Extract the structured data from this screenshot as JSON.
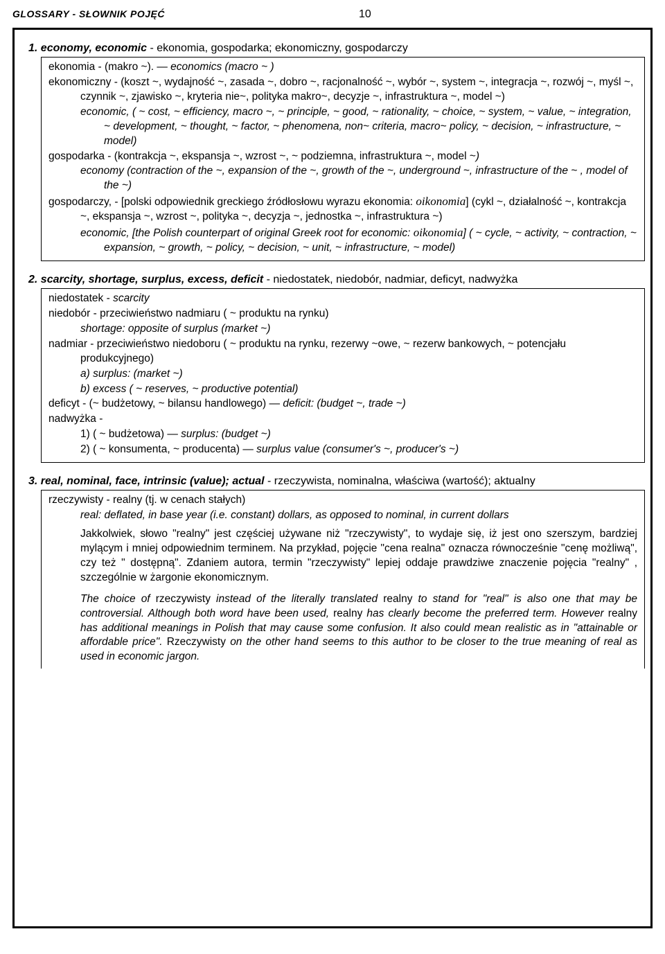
{
  "header": {
    "title": "GLOSSARY - SŁOWNIK POJĘĆ",
    "page": "10"
  },
  "entries": [
    {
      "num": "1.",
      "head_it": "economy, economic",
      "head_rest": " - ekonomia, gospodarka; ekonomiczny, gospodarczy",
      "body": [
        {
          "cls": "",
          "parts": [
            {
              "t": "ekonomia - (makro ~).  —  "
            },
            {
              "t": "economics (macro ~ )",
              "it": true
            }
          ]
        },
        {
          "cls": "ind1",
          "parts": [
            {
              "t": "ekonomiczny - (koszt ~, wydajność ~, zasada ~, dobro ~, racjonalność ~, wybór ~, system ~, integracja ~, rozwój ~, myśl ~, czynnik ~, zjawisko ~, kryteria nie~, polityka makro~, decyzje ~, infrastruktura ~, model ~)"
            }
          ]
        },
        {
          "cls": "ind3",
          "parts": [
            {
              "t": "economic, ( ~ cost, ~ efficiency, macro ~, ~ principle, ~ good, ~ rationality, ~ choice, ~ system, ~ value, ~ integration, ~ development, ~ thought, ~ factor, ~ phenomena, non~ criteria, macro~ policy, ~ decision, ~ infrastructure, ~ model)",
              "it": true
            }
          ]
        },
        {
          "cls": "ind1",
          "parts": [
            {
              "t": "gospodarka - (kontrakcja ~, ekspansja ~, wzrost ~, ~ podziemna, infrastruktura ~, model ~"
            },
            {
              "t": ")",
              "it": true
            }
          ]
        },
        {
          "cls": "ind3",
          "parts": [
            {
              "t": "economy (contraction of the ~, expansion of the ~, growth of the ~, underground ~, infrastructure of the ~ , model of the ~)",
              "it": true
            }
          ]
        },
        {
          "cls": "ind1",
          "parts": [
            {
              "t": "gospodarczy,  - [polski odpowiednik greckiego źródłosłowu wyrazu ekonomia: "
            },
            {
              "t": "oikonomia",
              "greek": true
            },
            {
              "t": "] (cykl ~, działalność ~, kontrakcja ~, ekspansja ~, wzrost ~, polityka ~, decyzja ~, jednostka ~, infrastruktura ~)"
            }
          ]
        },
        {
          "cls": "ind3",
          "parts": [
            {
              "t": "economic, [the Polish counterpart of original Greek root for economic: ",
              "it": true
            },
            {
              "t": "oikonomia",
              "greek": true
            },
            {
              "t": "] ( ~ cycle, ~ activity, ~ contraction, ~ expansion, ~ growth, ~ policy, ~ decision, ~ unit, ~ infrastructure, ~ model)",
              "it": true
            }
          ]
        }
      ]
    },
    {
      "num": "2.",
      "head_it": "scarcity, shortage, surplus, excess, deficit",
      "head_rest": " - niedostatek, niedobór, nadmiar, deficyt, nadwyżka",
      "body": [
        {
          "cls": "",
          "parts": [
            {
              "t": "niedostatek - "
            },
            {
              "t": "scarcity",
              "it": true
            }
          ]
        },
        {
          "cls": "",
          "parts": [
            {
              "t": "niedobór - przeciwieństwo nadmiaru ( ~ produktu na rynku)"
            }
          ]
        },
        {
          "cls": "ind2",
          "parts": [
            {
              "t": "shortage: opposite of surplus (market ~)",
              "it": true
            }
          ]
        },
        {
          "cls": "ind1",
          "parts": [
            {
              "t": "nadmiar - przeciwieństwo niedoboru ( ~ produktu na rynku, rezerwy ~owe, ~ rezerw bankowych, ~ potencjału produkcyjnego)"
            }
          ]
        },
        {
          "cls": "ind2",
          "parts": [
            {
              "t": "a) surplus: (market ~)",
              "it": true
            }
          ]
        },
        {
          "cls": "ind2",
          "parts": [
            {
              "t": "b) excess ( ~ reserves, ~ productive potential)",
              "it": true
            }
          ]
        },
        {
          "cls": "",
          "parts": [
            {
              "t": "deficyt - (~ budżetowy, ~ bilansu handlowego)  —  "
            },
            {
              "t": "deficit: (budget ~, trade ~)",
              "it": true
            }
          ]
        },
        {
          "cls": "",
          "parts": [
            {
              "t": "nadwyżka -"
            }
          ]
        },
        {
          "cls": "ind2",
          "parts": [
            {
              "t": "1) ( ~ budżetowa) — "
            },
            {
              "t": "surplus: (budget ~)",
              "it": true
            }
          ]
        },
        {
          "cls": "ind2",
          "parts": [
            {
              "t": "2) ( ~ konsumenta, ~ producenta)  —  "
            },
            {
              "t": "surplus value (consumer's ~, producer's ~)",
              "it": true
            }
          ]
        }
      ]
    },
    {
      "num": "3.",
      "head_it": "real, nominal, face, intrinsic (value); actual",
      "head_rest": " - rzeczywista, nominalna, właściwa (wartość); aktualny",
      "open": true,
      "body": [
        {
          "cls": "",
          "parts": [
            {
              "t": "rzeczywisty - realny (tj. w cenach stałych)"
            }
          ]
        },
        {
          "cls": "ind3",
          "parts": [
            {
              "t": "real: deflated, in base year (i.e. constant) dollars, as opposed to nominal, in current dollars",
              "it": true
            }
          ]
        },
        {
          "cls": "para",
          "parts": [
            {
              "t": "Jakkolwiek, słowo \"realny\" jest częściej używane niż \"rzeczywisty\", to wydaje się, iż jest ono szerszym, bardziej mylącym i mniej odpowiednim terminem.   Na przykład, pojęcie  \"cena realna\" oznacza równocześnie \"cenę możliwą\", czy też \" dostępną\". Zdaniem autora, termin \"rzeczywisty\" lepiej oddaje prawdziwe znaczenie pojęcia \"realny\" , szczególnie w żargonie ekonomicznym."
            }
          ]
        },
        {
          "cls": "para2",
          "parts": [
            {
              "t": "The choice of ",
              "it": true
            },
            {
              "t": "rzeczywisty",
              "nrm": true
            },
            {
              "t": " instead of the literally translated ",
              "it": true
            },
            {
              "t": "realny",
              "nrm": true
            },
            {
              "t": " to stand for \"real\" is also one that may be controversial.  Although both word have been used, ",
              "it": true
            },
            {
              "t": "realny",
              "nrm": true
            },
            {
              "t": " has clearly become the preferred term.  However ",
              "it": true
            },
            {
              "t": "realny",
              "nrm": true
            },
            {
              "t": " has additional meanings in Polish that may cause some confusion.  It also could mean realistic as in \"attainable or affordable price\".  ",
              "it": true
            },
            {
              "t": "Rzeczywisty",
              "nrm": true
            },
            {
              "t": " on the other hand seems to this author to be closer to the true meaning of real as used in economic jargon.",
              "it": true
            }
          ]
        }
      ]
    }
  ]
}
